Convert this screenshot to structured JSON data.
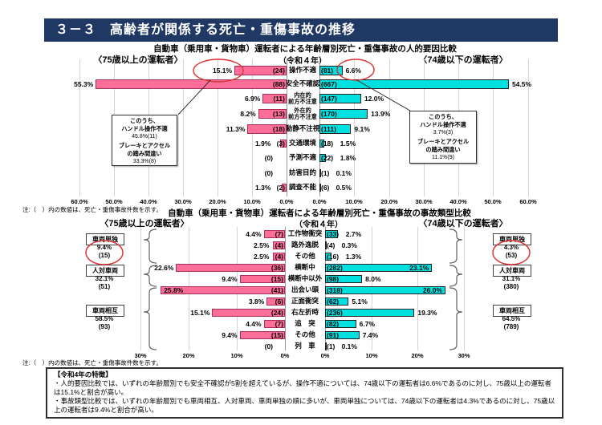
{
  "page_title": "３－３　高齢者が関係する死亡・重傷事故の推移",
  "colors": {
    "title_bar_bg": "#1F3864",
    "left_bar_fill": "#FF6E99",
    "right_bar_fill": "#00E0E0",
    "highlight_circle": "#E03030"
  },
  "chart_data": [
    {
      "type": "bar",
      "orientation": "butterfly",
      "title": "自動車（乗用車・貨物車）運転者による年齢層別死亡・重傷事故の人的要因比較",
      "subtitle": "（令和４年）",
      "left_header": "〈75歳以上の運転者〉",
      "right_header": "〈74歳以下の運転者〉",
      "xmax": 60,
      "axis_ticks_left": [
        "60.0%",
        "50.0%",
        "40.0%",
        "30.0%",
        "20.0%",
        "10.0%",
        "0.0%"
      ],
      "axis_ticks_right": [
        "0.0%",
        "10.0%",
        "20.0%",
        "30.0%",
        "40.0%",
        "50.0%",
        "60.0%"
      ],
      "note": "注:（　）内の数値は、死亡・重傷事故件数を示す。",
      "rows": [
        {
          "label": "操作不適",
          "left_pct": 15.1,
          "left_pct_label": "15.1%",
          "left_count": "(24)",
          "right_pct": 6.6,
          "right_pct_label": "6.6%",
          "right_count": "(81)"
        },
        {
          "label": "安全不確認",
          "left_pct": 55.3,
          "left_pct_label": "55.3%",
          "left_count": "(88)",
          "right_pct": 54.5,
          "right_pct_label": "54.5%",
          "right_count": "(667)"
        },
        {
          "label": "内在的\n前方不注意",
          "left_pct": 6.9,
          "left_pct_label": "6.9%",
          "left_count": "(11)",
          "right_pct": 12.0,
          "right_pct_label": "12.0%",
          "right_count": "(147)"
        },
        {
          "label": "外在的\n前方不注意",
          "left_pct": 8.2,
          "left_pct_label": "8.2%",
          "left_count": "(13)",
          "right_pct": 13.9,
          "right_pct_label": "13.9%",
          "right_count": "(170)"
        },
        {
          "label": "動静不注視",
          "left_pct": 11.3,
          "left_pct_label": "11.3%",
          "left_count": "(18)",
          "right_pct": 9.1,
          "right_pct_label": "9.1%",
          "right_count": "(111)"
        },
        {
          "label": "交通環境",
          "left_pct": 1.9,
          "left_pct_label": "1.9%",
          "left_count": "(3)",
          "right_pct": 1.5,
          "right_pct_label": "1.5%",
          "right_count": "(18)"
        },
        {
          "label": "予測不適",
          "left_pct": 0,
          "left_pct_label": "",
          "left_count": "(0)",
          "right_pct": 1.8,
          "right_pct_label": "1.8%",
          "right_count": "(22)"
        },
        {
          "label": "妨害目的",
          "left_pct": 0,
          "left_pct_label": "",
          "left_count": "(0)",
          "right_pct": 0.1,
          "right_pct_label": "0.1%",
          "right_count": "(1)"
        },
        {
          "label": "調査不能",
          "left_pct": 1.3,
          "left_pct_label": "1.3%",
          "left_count": "(2)",
          "right_pct": 0.5,
          "right_pct_label": "0.5%",
          "right_count": "(6)"
        }
      ],
      "callout_left": {
        "lines": [
          "このうち、",
          "ハンドル操作不適",
          "45.8%(11)",
          "ブレーキとアクセル",
          "の踏み間違い",
          "33.3%(8)"
        ]
      },
      "callout_right": {
        "lines": [
          "このうち、",
          "ハンドル操作不適",
          "3.7%(3)",
          "ブレーキとアクセル",
          "の踏み間違い",
          "11.1%(9)"
        ]
      }
    },
    {
      "type": "bar",
      "orientation": "butterfly",
      "title": "自動車（乗用車・貨物車）運転者による年齢層別死亡・重傷事故の事故類型比較",
      "subtitle": "（令和４年）",
      "left_header": "〈75歳以上の運転者〉",
      "right_header": "〈74歳以下の運転者〉",
      "xmax": 30,
      "axis_ticks_left": [
        "30%",
        "20%",
        "10%",
        "0%"
      ],
      "axis_ticks_right": [
        "0%",
        "10%",
        "20%",
        "30%"
      ],
      "note": "注:（　）内の数値は、死亡・重傷事故件数を示す。",
      "rows": [
        {
          "label": "工作物衝突",
          "left_pct": 4.4,
          "left_pct_label": "4.4%",
          "left_count": "(7)",
          "right_pct": 2.7,
          "right_pct_label": "2.7%",
          "right_count": "(33)"
        },
        {
          "label": "路外逸脱",
          "left_pct": 2.5,
          "left_pct_label": "2.5%",
          "left_count": "(4)",
          "right_pct": 0.3,
          "right_pct_label": "0.3%",
          "right_count": "(4)"
        },
        {
          "label": "その他",
          "left_pct": 2.5,
          "left_pct_label": "2.5%",
          "left_count": "(4)",
          "right_pct": 1.3,
          "right_pct_label": "1.3%",
          "right_count": "(16)"
        },
        {
          "label": "横断中",
          "left_pct": 22.6,
          "left_pct_label": "22.6%",
          "left_count": "(36)",
          "right_pct": 23.1,
          "right_pct_label": "23.1%",
          "right_count": "(282)"
        },
        {
          "label": "横断中以外",
          "left_pct": 9.4,
          "left_pct_label": "9.4%",
          "left_count": "(15)",
          "right_pct": 8.0,
          "right_pct_label": "8.0%",
          "right_count": "(98)"
        },
        {
          "label": "出会い頭",
          "left_pct": 25.8,
          "left_pct_label": "25.8%",
          "left_count": "(41)",
          "right_pct": 26.0,
          "right_pct_label": "26.0%",
          "right_count": "(318)"
        },
        {
          "label": "正面衝突",
          "left_pct": 3.8,
          "left_pct_label": "3.8%",
          "left_count": "(6)",
          "right_pct": 5.1,
          "right_pct_label": "5.1%",
          "right_count": "(62)"
        },
        {
          "label": "右左折時",
          "left_pct": 15.1,
          "left_pct_label": "15.1%",
          "left_count": "(24)",
          "right_pct": 19.3,
          "right_pct_label": "19.3%",
          "right_count": "(236)"
        },
        {
          "label": "追　突",
          "left_pct": 4.4,
          "left_pct_label": "4.4%",
          "left_count": "(7)",
          "right_pct": 6.7,
          "right_pct_label": "6.7%",
          "right_count": "(82)"
        },
        {
          "label": "その他",
          "left_pct": 9.4,
          "left_pct_label": "9.4%",
          "left_count": "(15)",
          "right_pct": 7.4,
          "right_pct_label": "7.4%",
          "right_count": "(91)"
        },
        {
          "label": "列　車",
          "left_pct": 0,
          "left_pct_label": "",
          "left_count": "(0)",
          "right_pct": 0.1,
          "right_pct_label": "0.1%",
          "right_count": "(1)"
        }
      ],
      "groups_left": [
        {
          "label": "車両単独",
          "pct": "9.4%",
          "count": "(15)",
          "circled": true
        },
        {
          "label": "人対車両",
          "pct": "32.1%",
          "count": "(51)",
          "circled": false
        },
        {
          "label": "車両相互",
          "pct": "58.5%",
          "count": "(93)",
          "circled": false
        }
      ],
      "groups_right": [
        {
          "label": "車両単独",
          "pct": "4.3%",
          "count": "(53)",
          "circled": true
        },
        {
          "label": "人対車両",
          "pct": "31.1%",
          "count": "(380)",
          "circled": false
        },
        {
          "label": "車両相互",
          "pct": "64.5%",
          "count": "(789)",
          "circled": false
        }
      ]
    }
  ],
  "feature_box": {
    "title": "【令和4年の特徴】",
    "bullets": [
      "・人的要因比較では、いずれの年齢層別でも安全不確認が5割を超えているが、操作不適については、74歳以下の運転者は6.6%であるのに対し、75歳以上の運転者は15.1%と割合が高い。",
      "・事故類型比較では、いずれの年齢層別でも車両相互、人対車両、車両単独の順に多いが、車両単独については、74歳以下の運転者は4.3%であるのに対し、75歳以上の運転者は9.4%と割合が高い。"
    ]
  }
}
